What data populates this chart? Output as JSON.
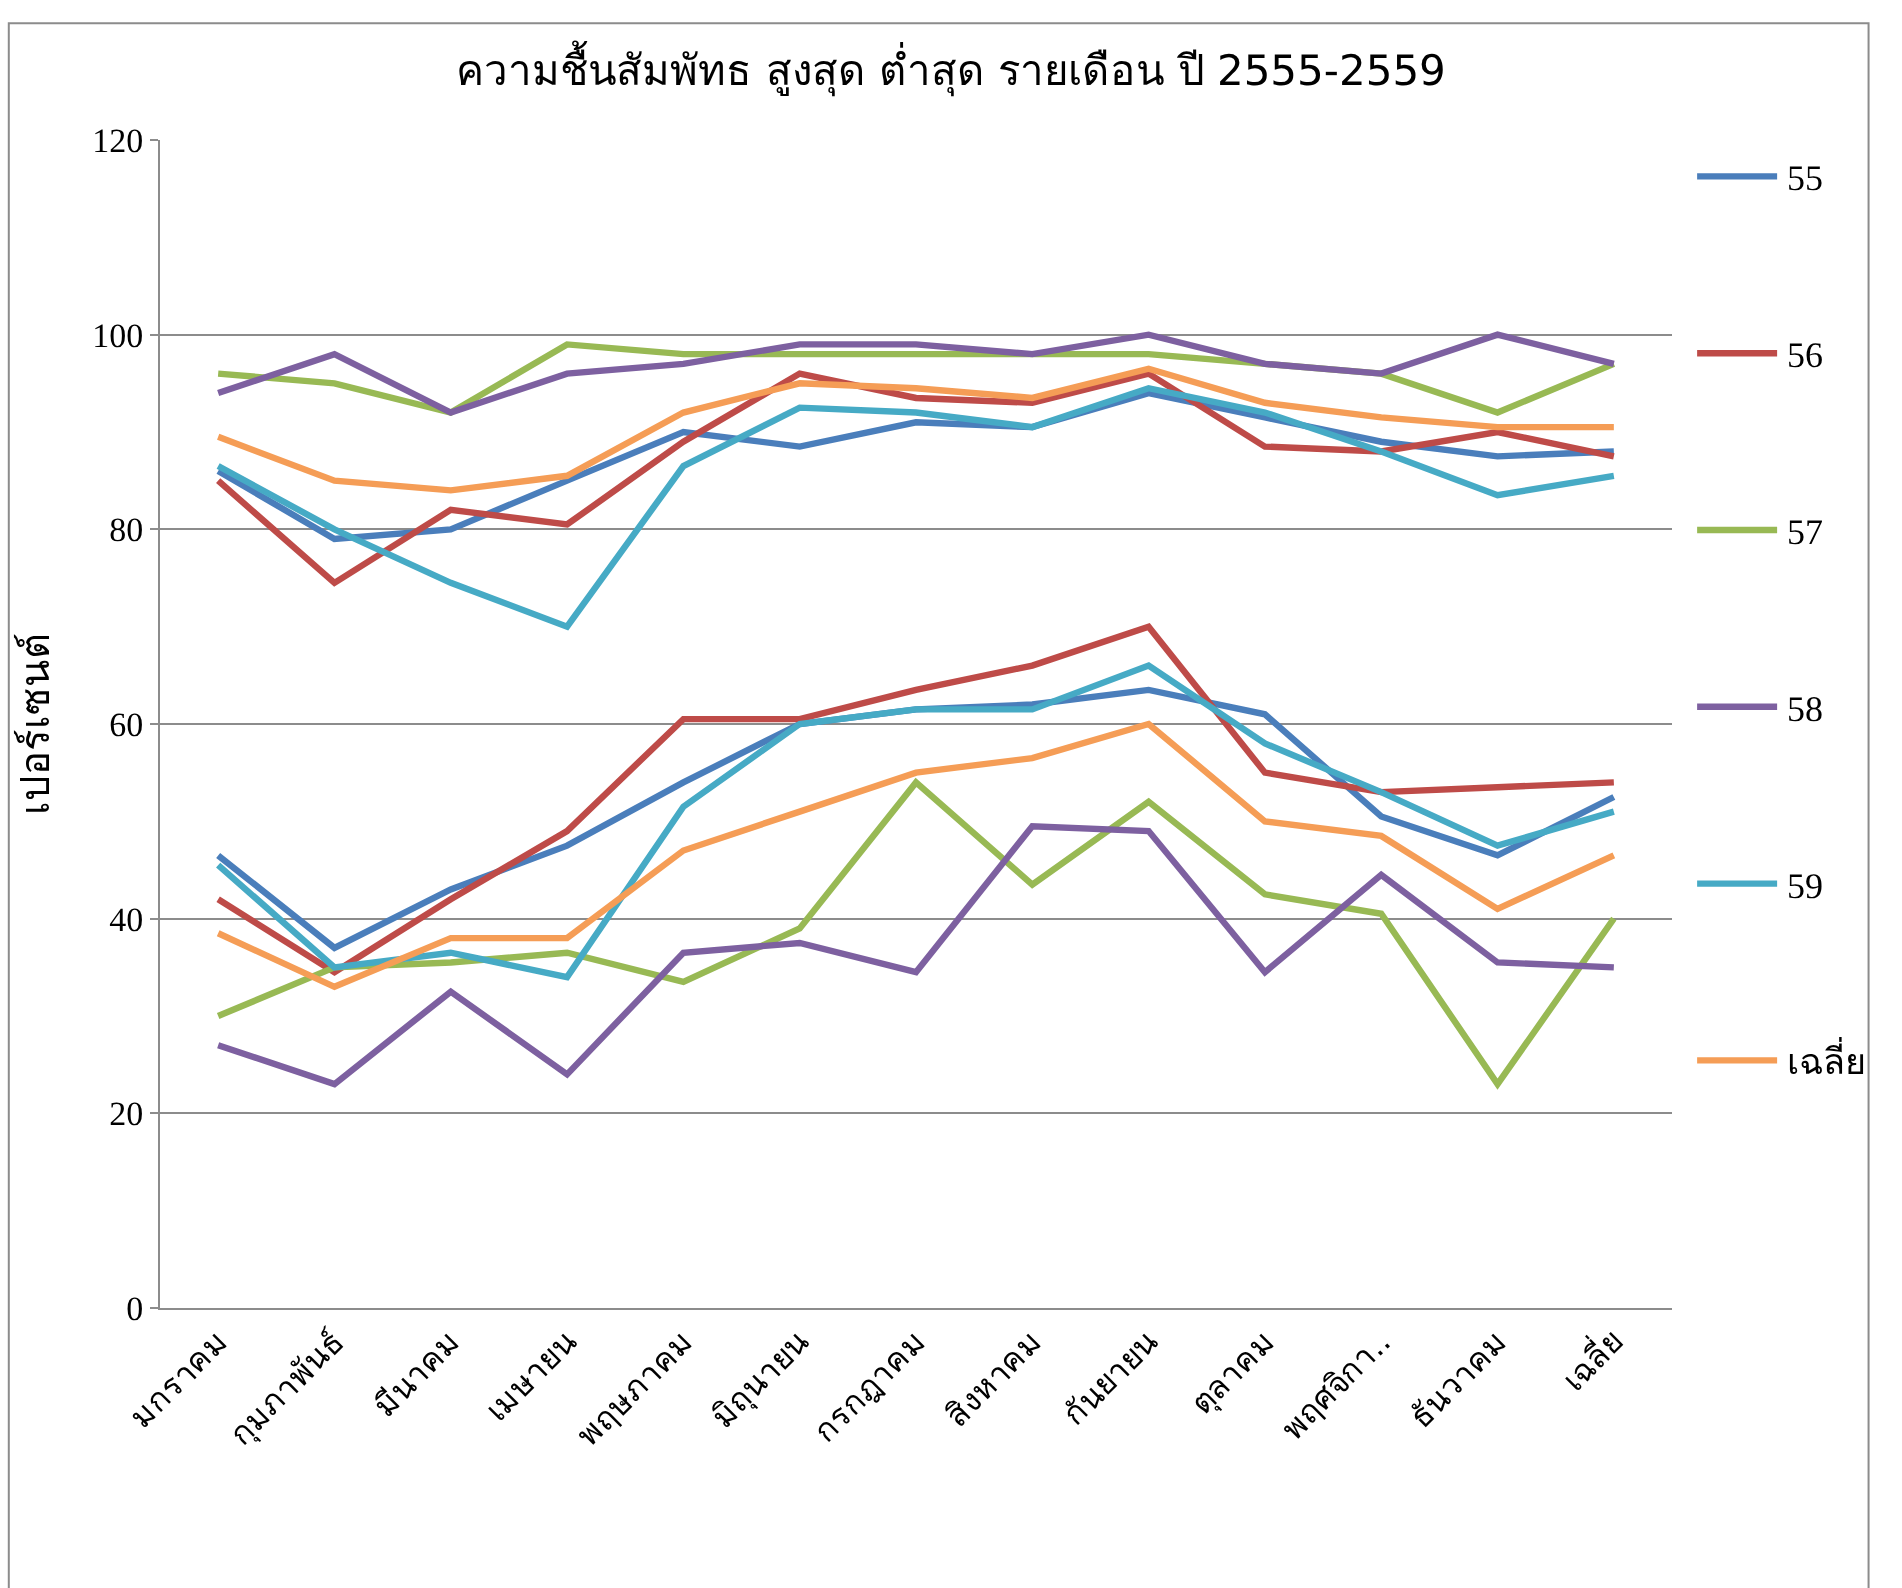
{
  "chart_data": {
    "type": "line",
    "title": "ความชื้นสัมพัทธ สูงสุด ต่ำสุด รายเดือน ปี 2555-2559",
    "ylabel": "เปอร์เซนต์",
    "categories": [
      "มกราคม",
      "กุมภาพันธ์",
      "มีนาคม",
      "เมษายน",
      "พฤษภาคม",
      "มิถุนายน",
      "กรกฎาคม",
      "สิงหาคม",
      "กันยายน",
      "ตุลาคม",
      "พฤศจิกา..",
      "ธันวาคม",
      "เฉลี่ย"
    ],
    "ylim": [
      0,
      120
    ],
    "yticks": [
      0,
      20,
      40,
      60,
      80,
      100,
      120
    ],
    "grid": "y",
    "legend": "right",
    "marker": "none",
    "line_style": "solid",
    "series": [
      {
        "name": "55",
        "color": "#4a7ebb",
        "values": [
          86,
          79,
          80,
          85,
          90,
          88.5,
          91,
          90.5,
          94,
          91.5,
          89,
          87.5,
          88
        ]
      },
      {
        "name": "56",
        "color": "#be4b48",
        "values": [
          85,
          74.5,
          82,
          80.5,
          89,
          96,
          93.5,
          93,
          96,
          88.5,
          88,
          90,
          87.5
        ]
      },
      {
        "name": "57",
        "color": "#98b954",
        "values": [
          96,
          95,
          92,
          99,
          98,
          98,
          98,
          98,
          98,
          97,
          96,
          92,
          97
        ]
      },
      {
        "name": "58",
        "color": "#7d60a0",
        "values": [
          94,
          98,
          92,
          96,
          97,
          99,
          99,
          98,
          100,
          97,
          96,
          100,
          97
        ]
      },
      {
        "name": "59",
        "color": "#46aac5",
        "values": [
          86.5,
          80,
          74.5,
          70,
          86.5,
          92.5,
          92,
          90.5,
          94.5,
          92,
          88,
          83.5,
          85.5
        ]
      },
      {
        "name": "เฉลี่ย",
        "color": "#f59d56",
        "values": [
          89.5,
          85,
          84,
          85.5,
          92,
          95,
          94.5,
          93.5,
          96.5,
          93,
          91.5,
          90.5,
          90.5
        ]
      },
      {
        "color": "#4a7ebb",
        "values": [
          46.5,
          37,
          43,
          47.5,
          54,
          60,
          61.5,
          62,
          63.5,
          61,
          50.5,
          46.5,
          52.5
        ]
      },
      {
        "color": "#be4b48",
        "values": [
          42,
          34.5,
          42,
          49,
          60.5,
          60.5,
          63.5,
          66,
          70,
          55,
          53,
          53.5,
          54
        ]
      },
      {
        "color": "#98b954",
        "values": [
          30,
          35,
          35.5,
          36.5,
          33.5,
          39,
          54,
          43.5,
          52,
          42.5,
          40.5,
          23,
          40
        ]
      },
      {
        "color": "#7d60a0",
        "values": [
          27,
          23,
          32.5,
          24,
          36.5,
          37.5,
          34.5,
          49.5,
          49,
          34.5,
          44.5,
          35.5,
          35
        ]
      },
      {
        "color": "#46aac5",
        "values": [
          45.5,
          35,
          36.5,
          34,
          51.5,
          60,
          61.5,
          61.5,
          66,
          58,
          53,
          47.5,
          51
        ]
      },
      {
        "color": "#f59d56",
        "values": [
          38.5,
          33,
          38,
          38,
          47,
          51,
          55,
          56.5,
          60,
          50,
          48.5,
          41,
          46.5
        ]
      }
    ]
  }
}
